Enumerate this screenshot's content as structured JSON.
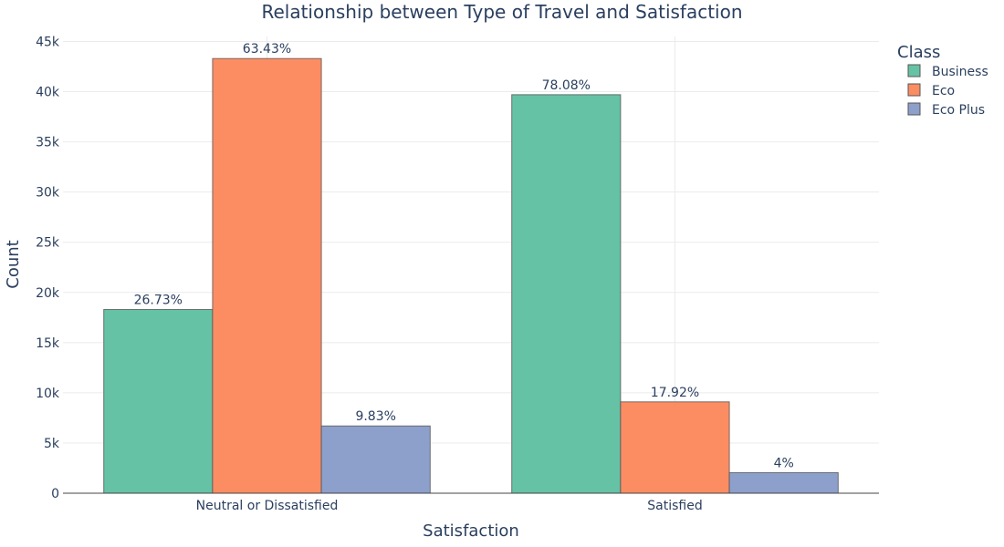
{
  "chart_data": {
    "type": "bar",
    "title": "Relationship between Type of Travel and Satisfaction",
    "xlabel": "Satisfaction",
    "ylabel": "Count",
    "categories": [
      "Neutral or Dissatisfied",
      "Satisfied"
    ],
    "series": [
      {
        "name": "Business",
        "values": [
          18300,
          39700
        ],
        "labels": [
          "26.73%",
          "78.08%"
        ],
        "color": "#66c2a5"
      },
      {
        "name": "Eco",
        "values": [
          43300,
          9100
        ],
        "labels": [
          "63.43%",
          "17.92%"
        ],
        "color": "#fc8d62"
      },
      {
        "name": "Eco Plus",
        "values": [
          6700,
          2050
        ],
        "labels": [
          "9.83%",
          "4%"
        ],
        "color": "#8da0cb"
      }
    ],
    "ylim": [
      0,
      45500
    ],
    "yticks": [
      {
        "value": 0,
        "label": "0"
      },
      {
        "value": 5000,
        "label": "5k"
      },
      {
        "value": 10000,
        "label": "10k"
      },
      {
        "value": 15000,
        "label": "15k"
      },
      {
        "value": 20000,
        "label": "20k"
      },
      {
        "value": 25000,
        "label": "25k"
      },
      {
        "value": 30000,
        "label": "30k"
      },
      {
        "value": 35000,
        "label": "35k"
      },
      {
        "value": 40000,
        "label": "40k"
      },
      {
        "value": 45000,
        "label": "45k"
      }
    ],
    "grid": true,
    "legend": {
      "title": "Class",
      "position": "top-right"
    }
  }
}
